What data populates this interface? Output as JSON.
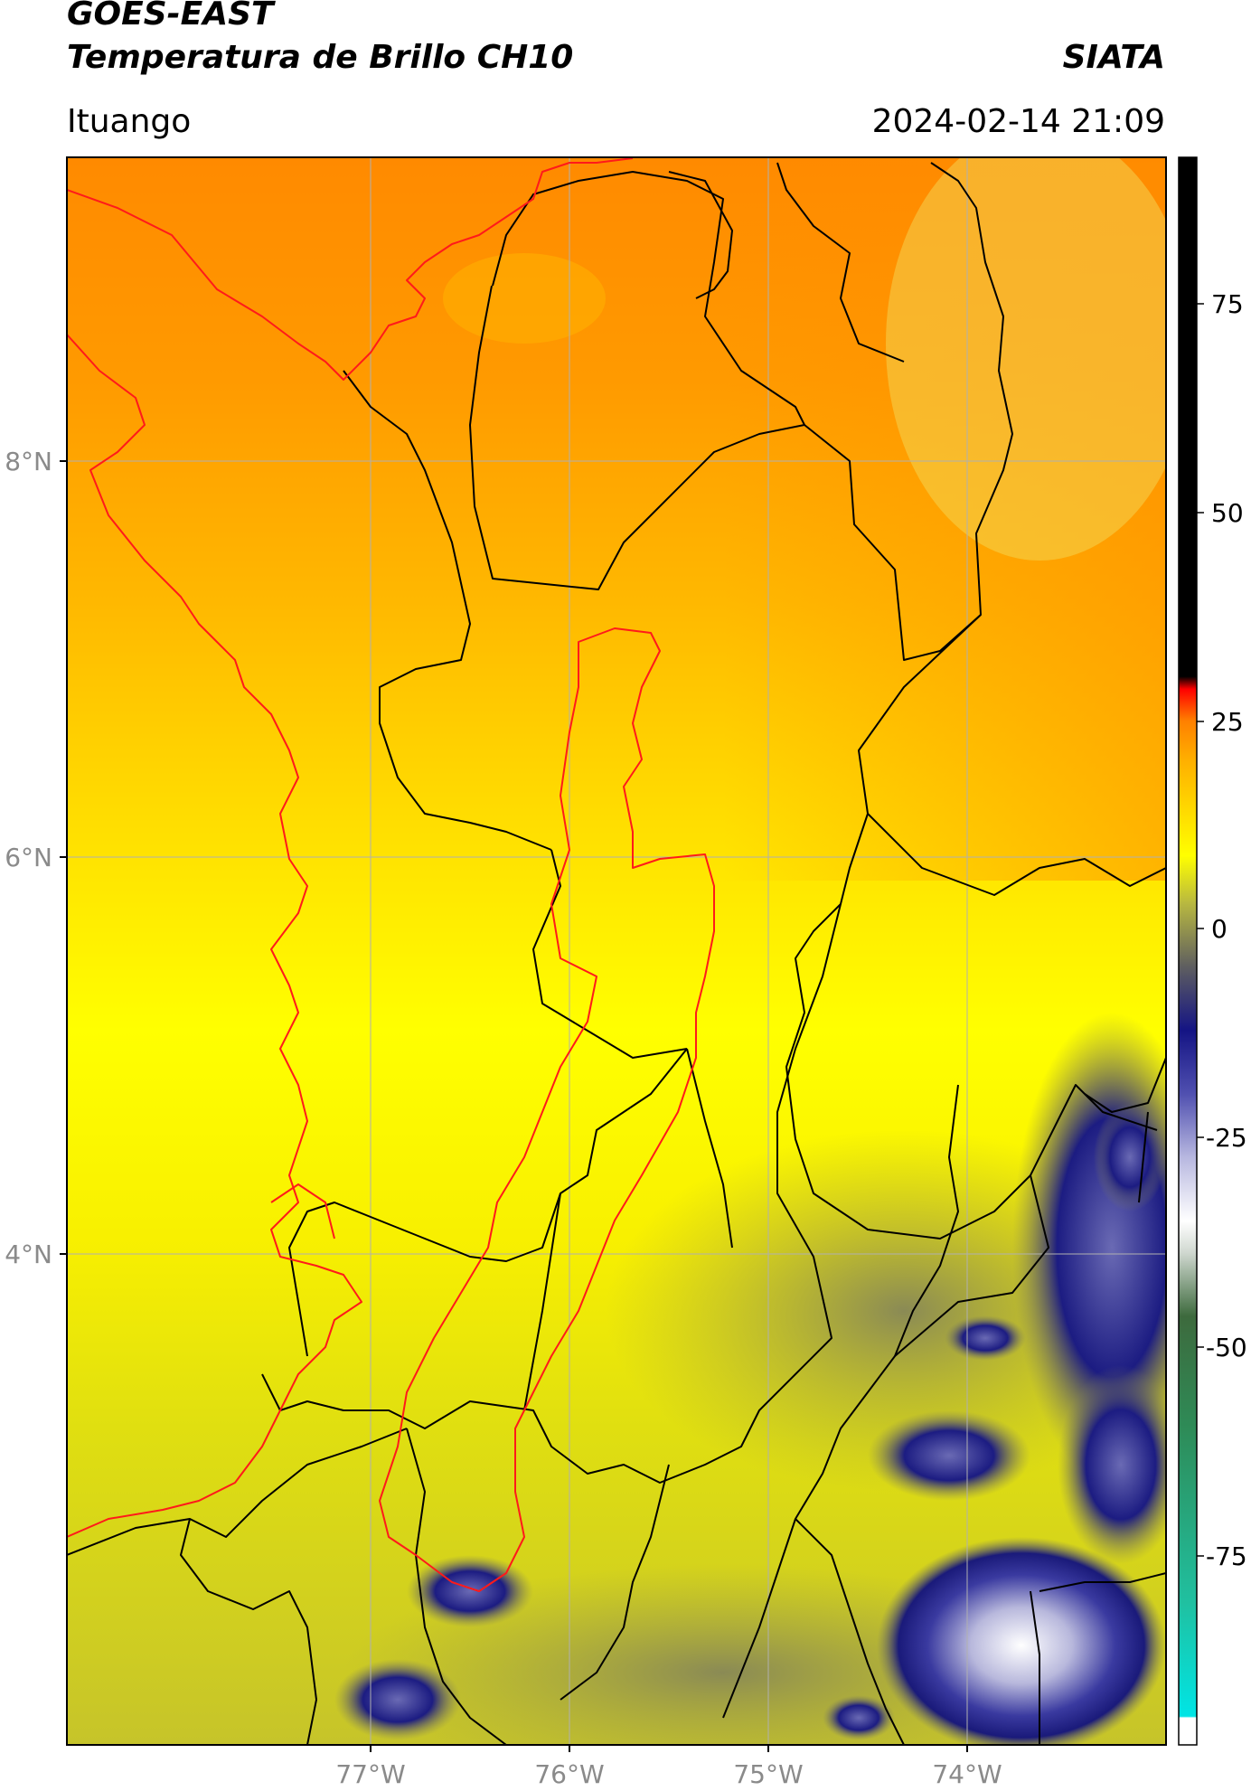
{
  "header": {
    "satellite": "GOES-EAST",
    "product": "Temperatura de Brillo CH10",
    "brand": "SIATA",
    "region": "Ituango",
    "datetime": "2024-02-14 21:09"
  },
  "map": {
    "lat_labels": [
      "8°N",
      "6°N",
      "4°N"
    ],
    "lon_labels": [
      "77°W",
      "76°W",
      "75°W",
      "74°W"
    ],
    "colors": {
      "frame": "#000000",
      "grid": "#b0b0b0",
      "axis_label": "#8a8a8a",
      "department_borders": "#000000",
      "coast_and_basin": "#ff1a1a",
      "warm": "#ff8c00",
      "mid": "#ffff00",
      "cold": "#1a1a8c"
    }
  },
  "colorbar": {
    "ticks": [
      "75",
      "50",
      "25",
      "0",
      "-25",
      "-50",
      "-75"
    ],
    "colors": [
      "#000000",
      "#ff0000",
      "#ff8c00",
      "#ffff00",
      "#b8b840",
      "#1a1a8c",
      "#ffffff",
      "#2e8b57",
      "#00e5e5",
      "#ffffff"
    ]
  }
}
